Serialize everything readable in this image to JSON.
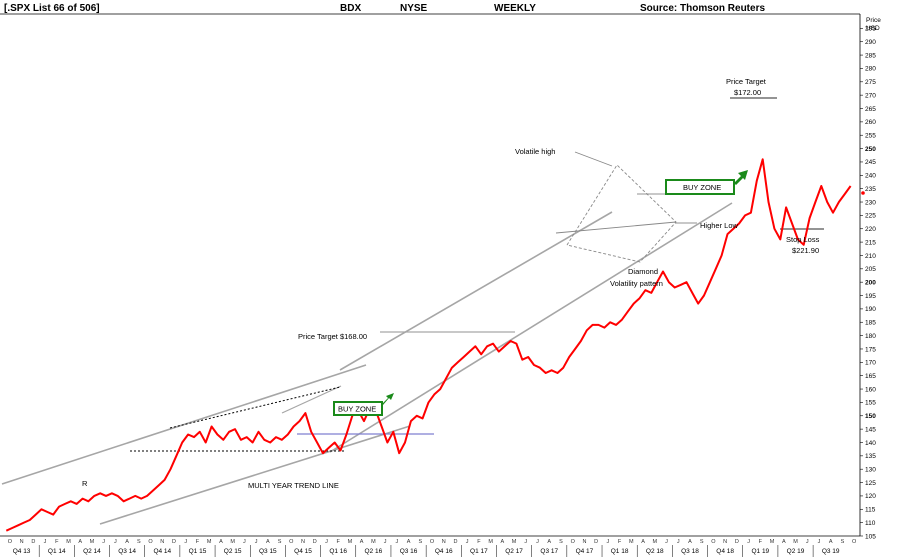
{
  "header": {
    "list": "[.SPX List 66 of 506]",
    "symbol": "BDX",
    "exchange": "NYSE",
    "period": "WEEKLY",
    "source": "Source: Thomson Reuters"
  },
  "chart_data": {
    "type": "line",
    "title": "",
    "xlabel": "",
    "ylabel": "Price USD",
    "ylabel_lines": [
      "Price",
      "USD"
    ],
    "ylim": [
      105,
      300
    ],
    "y_ticks": [
      105,
      110,
      115,
      120,
      125,
      130,
      135,
      140,
      145,
      150,
      155,
      160,
      165,
      170,
      175,
      180,
      185,
      190,
      195,
      200,
      205,
      210,
      215,
      220,
      225,
      230,
      235,
      240,
      245,
      250,
      255,
      260,
      265,
      270,
      275,
      280,
      285,
      290,
      295
    ],
    "y_bold_ticks": [
      150,
      200,
      250
    ],
    "xlim": [
      0,
      72
    ],
    "month_letters": [
      "O",
      "N",
      "D",
      "J",
      "F",
      "M",
      "A",
      "M",
      "J",
      "J",
      "A",
      "S",
      "O",
      "N",
      "D",
      "J",
      "F",
      "M",
      "A",
      "M",
      "J",
      "J",
      "A",
      "S",
      "O",
      "N",
      "D",
      "J",
      "F",
      "M",
      "A",
      "M",
      "J",
      "J",
      "A",
      "S",
      "O",
      "N",
      "D",
      "J",
      "F",
      "M",
      "A",
      "M",
      "J",
      "J",
      "A",
      "S",
      "O",
      "N",
      "D",
      "J",
      "F",
      "M",
      "A",
      "M",
      "J",
      "J",
      "A",
      "S",
      "O",
      "N",
      "D",
      "J",
      "F",
      "M",
      "A",
      "M",
      "J",
      "J",
      "A",
      "S",
      "O"
    ],
    "quarters": [
      "Q4 13",
      "Q1 14",
      "Q2 14",
      "Q3 14",
      "Q4 14",
      "Q1 15",
      "Q2 15",
      "Q3 15",
      "Q4 15",
      "Q1 16",
      "Q2 16",
      "Q3 16",
      "Q4 16",
      "Q1 17",
      "Q2 17",
      "Q3 17",
      "Q4 17",
      "Q1 18",
      "Q2 18",
      "Q3 18",
      "Q4 18",
      "Q1 19",
      "Q2 19",
      "Q3 19"
    ],
    "series": [
      {
        "color": "#ff0000",
        "points": [
          [
            0.0,
            107
          ],
          [
            0.5,
            108
          ],
          [
            1.0,
            109
          ],
          [
            1.5,
            110
          ],
          [
            2.0,
            111
          ],
          [
            2.5,
            113
          ],
          [
            3.0,
            115
          ],
          [
            3.5,
            114
          ],
          [
            4.0,
            113
          ],
          [
            4.5,
            116
          ],
          [
            5.0,
            117
          ],
          [
            5.5,
            118
          ],
          [
            6.0,
            117
          ],
          [
            6.5,
            119
          ],
          [
            7.0,
            118
          ],
          [
            7.5,
            120
          ],
          [
            8.0,
            121
          ],
          [
            8.5,
            120
          ],
          [
            9.0,
            121
          ],
          [
            9.5,
            120
          ],
          [
            10.0,
            118
          ],
          [
            10.5,
            119
          ],
          [
            11.0,
            120
          ],
          [
            11.5,
            119
          ],
          [
            12.0,
            120
          ],
          [
            12.5,
            122
          ],
          [
            13.0,
            124
          ],
          [
            13.5,
            126
          ],
          [
            14.0,
            130
          ],
          [
            14.5,
            135
          ],
          [
            15.0,
            140
          ],
          [
            15.5,
            143
          ],
          [
            16.0,
            142
          ],
          [
            16.5,
            144
          ],
          [
            17.0,
            140
          ],
          [
            17.5,
            146
          ],
          [
            18.0,
            143
          ],
          [
            18.5,
            141
          ],
          [
            19.0,
            144
          ],
          [
            19.5,
            145
          ],
          [
            20.0,
            141
          ],
          [
            20.5,
            142
          ],
          [
            21.0,
            140
          ],
          [
            21.5,
            144
          ],
          [
            22.0,
            141
          ],
          [
            22.5,
            140
          ],
          [
            23.0,
            142
          ],
          [
            23.5,
            141
          ],
          [
            24.0,
            143
          ],
          [
            24.5,
            146
          ],
          [
            25.0,
            148
          ],
          [
            25.5,
            151
          ],
          [
            26.0,
            144
          ],
          [
            26.5,
            140
          ],
          [
            27.0,
            136
          ],
          [
            27.5,
            138
          ],
          [
            28.0,
            140
          ],
          [
            28.5,
            137
          ],
          [
            29.0,
            143
          ],
          [
            29.5,
            150
          ],
          [
            30.0,
            152
          ],
          [
            30.5,
            148
          ],
          [
            31.0,
            153
          ],
          [
            31.5,
            152
          ],
          [
            32.0,
            146
          ],
          [
            32.5,
            140
          ],
          [
            33.0,
            144
          ],
          [
            33.5,
            136
          ],
          [
            34.0,
            140
          ],
          [
            34.5,
            148
          ],
          [
            35.0,
            150
          ],
          [
            35.5,
            149
          ],
          [
            36.0,
            155
          ],
          [
            36.5,
            158
          ],
          [
            37.0,
            160
          ],
          [
            37.5,
            164
          ],
          [
            38.0,
            168
          ],
          [
            38.5,
            170
          ],
          [
            39.0,
            172
          ],
          [
            39.5,
            174
          ],
          [
            40.0,
            176
          ],
          [
            40.5,
            173
          ],
          [
            41.0,
            176
          ],
          [
            41.5,
            177
          ],
          [
            42.0,
            174
          ],
          [
            42.5,
            176
          ],
          [
            43.0,
            178
          ],
          [
            43.5,
            177
          ],
          [
            44.0,
            171
          ],
          [
            44.5,
            172
          ],
          [
            45.0,
            169
          ],
          [
            45.5,
            168
          ],
          [
            46.0,
            166
          ],
          [
            46.5,
            167
          ],
          [
            47.0,
            166
          ],
          [
            47.5,
            168
          ],
          [
            48.0,
            172
          ],
          [
            48.5,
            175
          ],
          [
            49.0,
            178
          ],
          [
            49.5,
            182
          ],
          [
            50.0,
            184
          ],
          [
            50.5,
            184
          ],
          [
            51.0,
            183
          ],
          [
            51.5,
            185
          ],
          [
            52.0,
            184
          ],
          [
            52.5,
            186
          ],
          [
            53.0,
            189
          ],
          [
            53.5,
            192
          ],
          [
            54.0,
            194
          ],
          [
            54.5,
            197
          ],
          [
            55.0,
            196
          ],
          [
            55.5,
            200
          ],
          [
            56.0,
            204
          ],
          [
            56.5,
            200
          ],
          [
            57.0,
            198
          ],
          [
            57.5,
            199
          ],
          [
            58.0,
            200
          ],
          [
            58.5,
            196
          ],
          [
            59.0,
            192
          ],
          [
            59.5,
            195
          ],
          [
            60.0,
            200
          ],
          [
            60.5,
            205
          ],
          [
            61.0,
            210
          ],
          [
            61.5,
            218
          ],
          [
            62.0,
            220
          ],
          [
            62.5,
            222
          ],
          [
            63.0,
            225
          ],
          [
            63.5,
            226
          ],
          [
            64.0,
            238
          ],
          [
            64.5,
            246
          ],
          [
            65.0,
            230
          ],
          [
            65.5,
            220
          ],
          [
            66.0,
            216
          ],
          [
            66.5,
            228
          ],
          [
            67.0,
            222
          ],
          [
            67.5,
            216
          ],
          [
            68.0,
            214
          ],
          [
            68.5,
            224
          ],
          [
            69.0,
            230
          ],
          [
            69.5,
            236
          ],
          [
            70.0,
            230
          ],
          [
            70.5,
            226
          ],
          [
            71.0,
            230
          ],
          [
            71.5,
            233
          ],
          [
            72.0,
            236
          ]
        ]
      }
    ],
    "annotations": {
      "volatile_high": "Volatile high",
      "price_target_top": "Price Target",
      "price_target_top_value": "$172.00",
      "buy_zone_top": "BUY ZONE",
      "higher_low": "Higher Low",
      "stop_loss": "Stop Loss",
      "stop_loss_value": "$221.90",
      "diamond_1": "Diamond",
      "diamond_2": "Volatility pattern",
      "price_target_mid": "Price Target $168.00",
      "buy_zone_mid": "BUY ZONE",
      "r_label": "R",
      "trend_line": "MULTI YEAR TREND LINE"
    },
    "accent_colors": {
      "price": "#ff0000",
      "trend": "#a6a6a6",
      "buy_zone": "#1a8a1a",
      "support": "#7f7fd0"
    }
  }
}
